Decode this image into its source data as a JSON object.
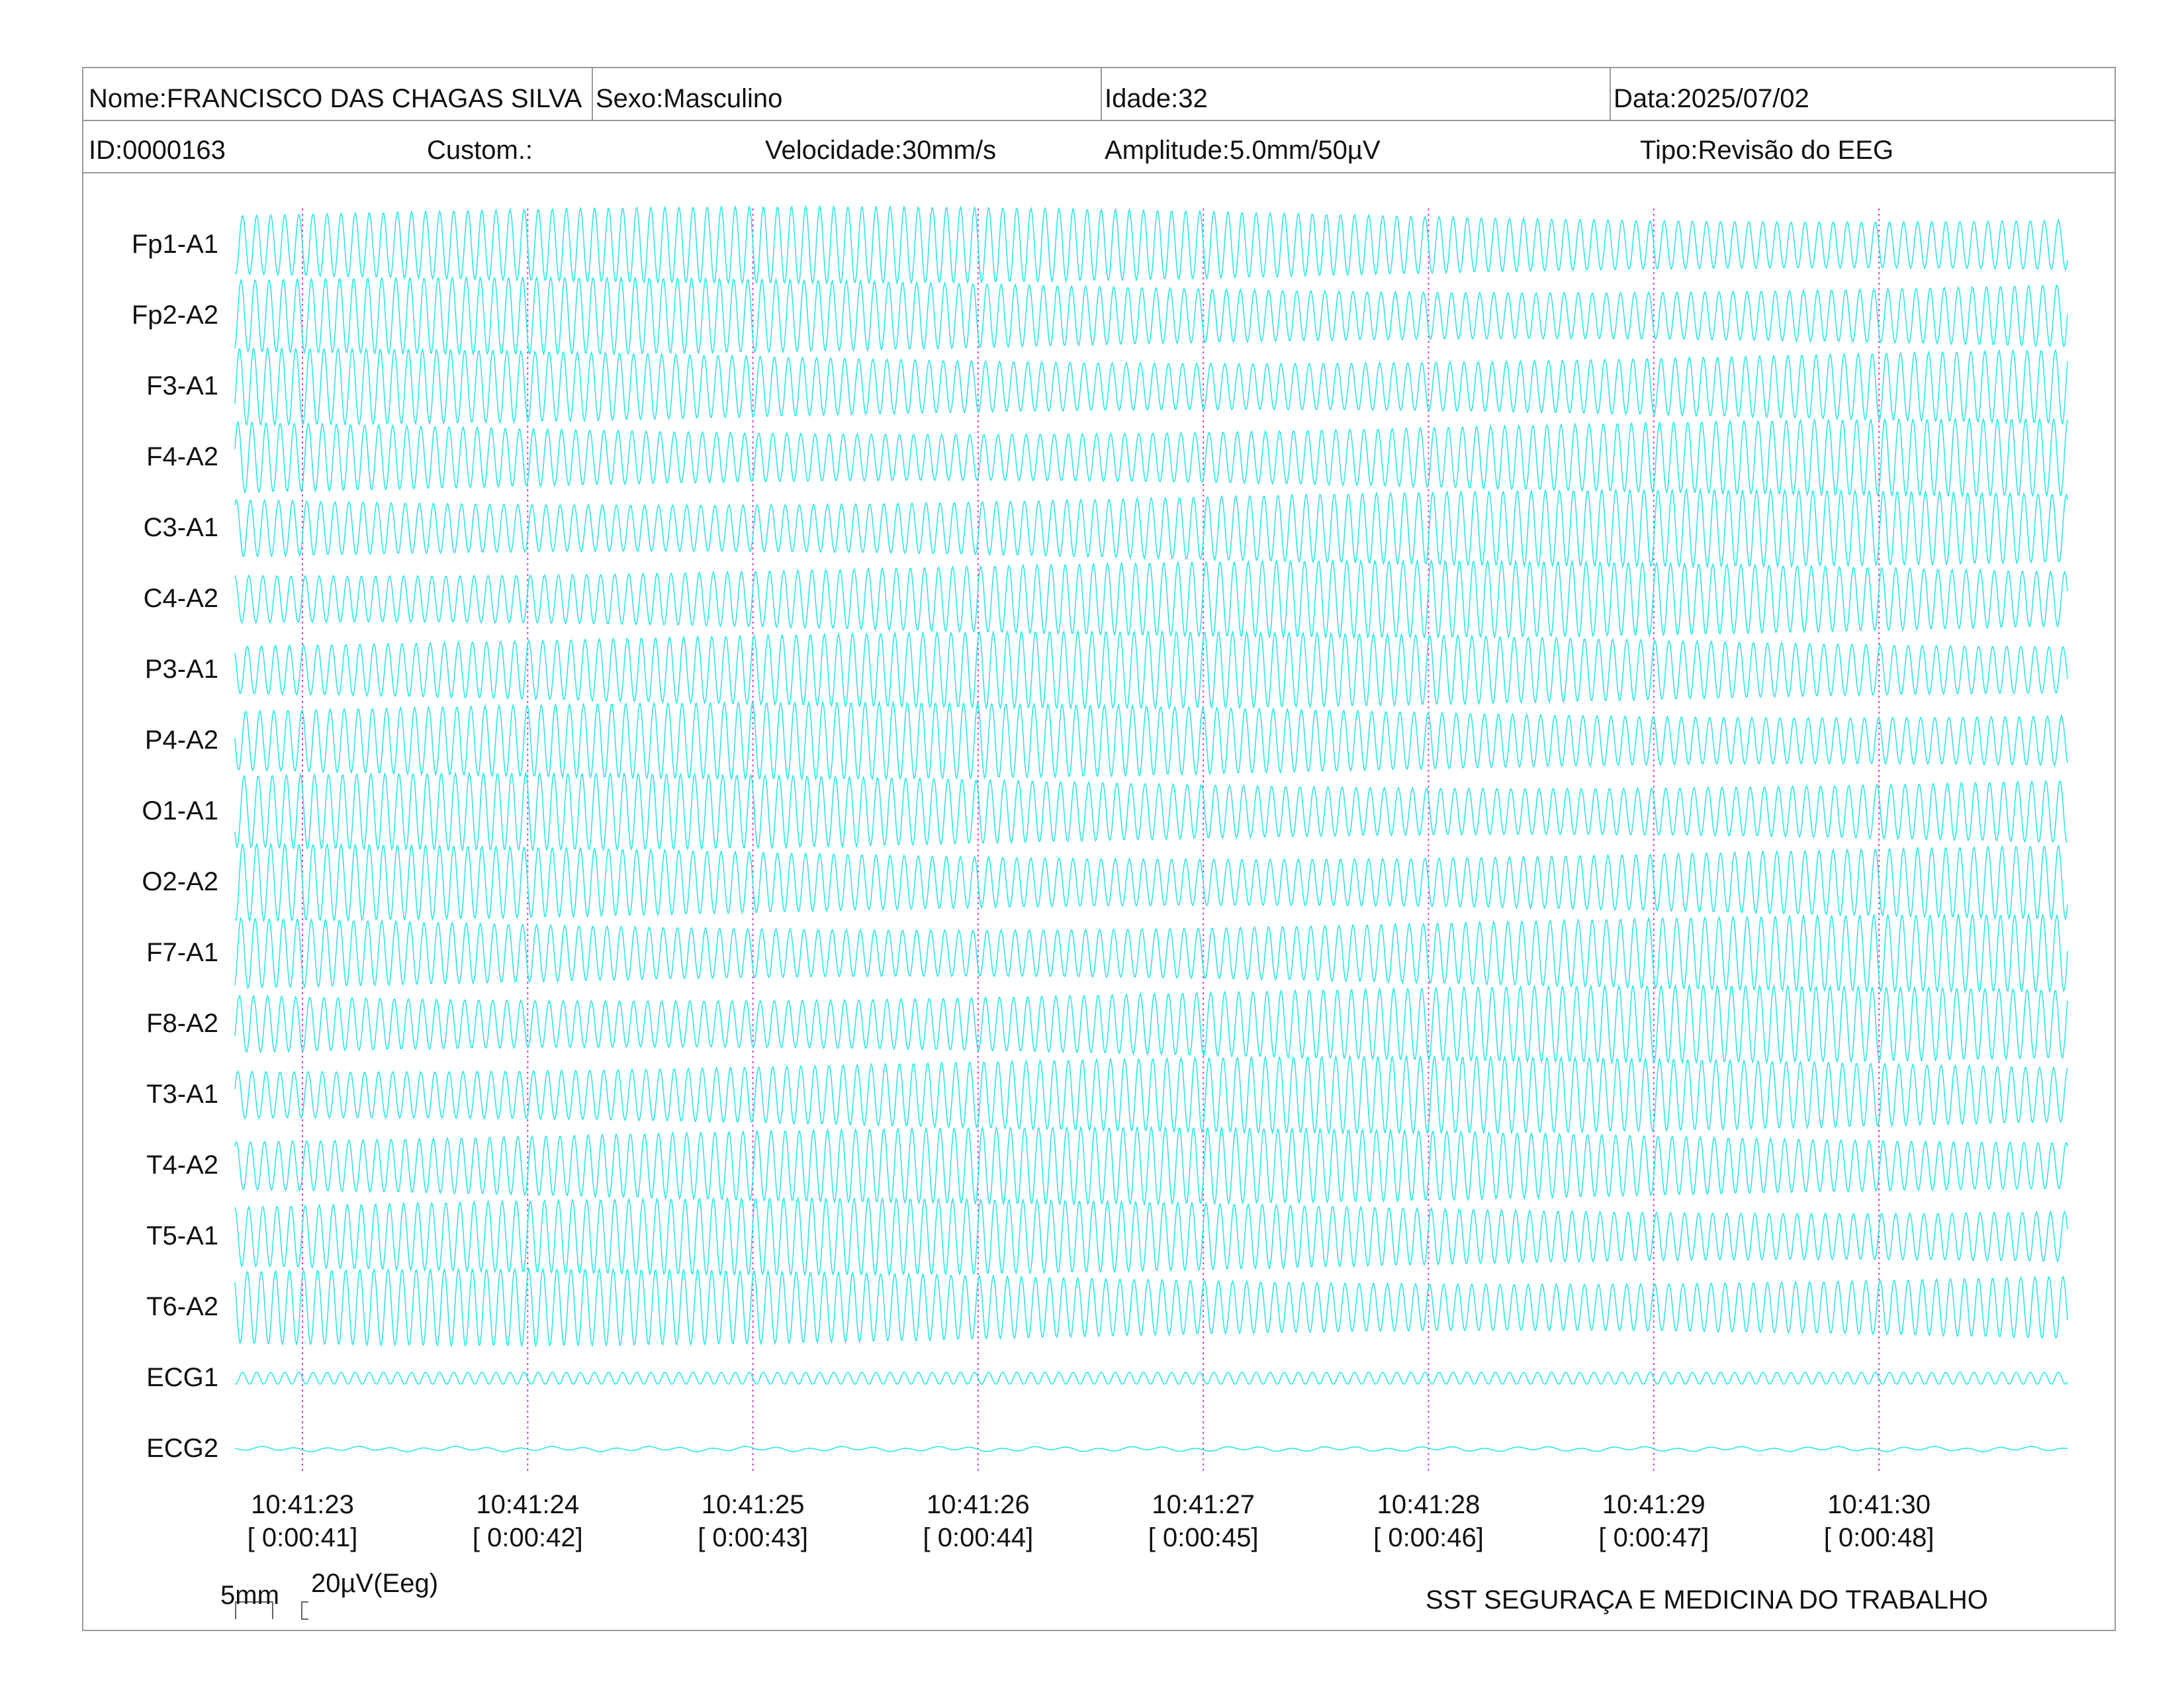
{
  "header": {
    "nome": "Nome:FRANCISCO DAS CHAGAS SILVA",
    "sexo": "Sexo:Masculino",
    "idade": "Idade:32",
    "data": "Data:2025/07/02",
    "id": "ID:0000163",
    "custom": "Custom.:",
    "velocidade": "Velocidade:30mm/s",
    "amplitude": "Amplitude:5.0mm/50µV",
    "tipo": "Tipo:Revisão do EEG"
  },
  "chart_data": {
    "type": "line",
    "title": "",
    "xlabel": "",
    "ylabel": "",
    "channels": [
      "Fp1-A1",
      "Fp2-A2",
      "F3-A1",
      "F4-A2",
      "C3-A1",
      "C4-A2",
      "P3-A1",
      "P4-A2",
      "O1-A1",
      "O2-A2",
      "F7-A1",
      "F8-A2",
      "T3-A1",
      "T4-A2",
      "T5-A1",
      "T6-A2",
      "ECG1",
      "ECG2"
    ],
    "x_ticks": [
      {
        "time": "10:41:23",
        "elapsed": "[ 0:00:41]"
      },
      {
        "time": "10:41:24",
        "elapsed": "[ 0:00:42]"
      },
      {
        "time": "10:41:25",
        "elapsed": "[ 0:00:43]"
      },
      {
        "time": "10:41:26",
        "elapsed": "[ 0:00:44]"
      },
      {
        "time": "10:41:27",
        "elapsed": "[ 0:00:45]"
      },
      {
        "time": "10:41:28",
        "elapsed": "[ 0:00:46]"
      },
      {
        "time": "10:41:29",
        "elapsed": "[ 0:00:47]"
      },
      {
        "time": "10:41:30",
        "elapsed": "[ 0:00:48]"
      }
    ],
    "time_range": [
      "10:41:22.7",
      "10:41:30.8"
    ],
    "seconds_per_division": 1,
    "eeg_dominant_frequency_hz": 16,
    "ecg1_frequency_hz": 16,
    "trace_color": "#2ee6e6",
    "second_marker_color": "#d040d0",
    "grid": false,
    "legend": "none"
  },
  "scale": {
    "time_label": "5mm",
    "amp_label": "20µV(Eeg)"
  },
  "footer": {
    "company": "SST SEGURAÇA E MEDICINA DO TRABALHO"
  }
}
